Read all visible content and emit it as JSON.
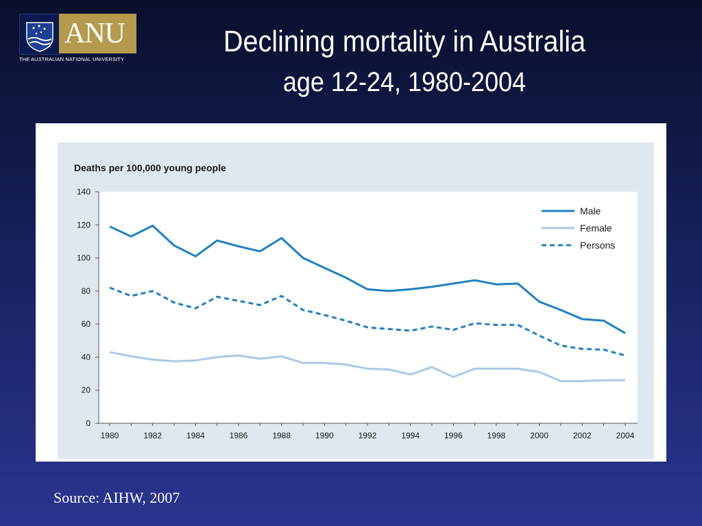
{
  "slide": {
    "title": "Declining mortality in Australia",
    "subtitle": "age 12-24, 1980-2004",
    "source": "Source: AIHW, 2007"
  },
  "logo": {
    "wordmark": "ANU",
    "university_name": "THE AUSTRALIAN NATIONAL UNIVERSITY"
  },
  "colors": {
    "male": "#1f7fc0",
    "female": "#a9c9e6",
    "persons": "#1f7fc0",
    "plot_bg": "#ffffff",
    "chart_bg": "#dfe7f0"
  },
  "chart_data": {
    "type": "line",
    "ylabel": "Deaths per 100,000 young people",
    "xlabel": "",
    "ylim": [
      0,
      140
    ],
    "yticks": [
      0,
      20,
      40,
      60,
      80,
      100,
      120,
      140
    ],
    "xticks": [
      1980,
      1982,
      1984,
      1986,
      1988,
      1990,
      1992,
      1994,
      1996,
      1998,
      2000,
      2002,
      2004
    ],
    "x": [
      1980,
      1981,
      1982,
      1983,
      1984,
      1985,
      1986,
      1987,
      1988,
      1989,
      1990,
      1991,
      1992,
      1993,
      1994,
      1995,
      1996,
      1997,
      1998,
      1999,
      2000,
      2001,
      2002,
      2003,
      2004
    ],
    "legend_position": "top-right",
    "grid": false,
    "series": [
      {
        "name": "Male",
        "style": "solid",
        "values": [
          119,
          113,
          119.5,
          107.5,
          101,
          110.5,
          107,
          104,
          112,
          100,
          94,
          88,
          81,
          80,
          81,
          82.5,
          84.5,
          86.5,
          84,
          84.5,
          73.5,
          68.5,
          63,
          62,
          54.5
        ]
      },
      {
        "name": "Female",
        "style": "solid",
        "values": [
          43,
          40.5,
          38.5,
          37.5,
          38,
          40,
          41,
          39,
          40.5,
          36.5,
          36.5,
          35.5,
          33,
          32.5,
          29.5,
          34,
          28,
          33,
          33,
          33,
          31,
          25.5,
          25.5,
          26,
          26
        ]
      },
      {
        "name": "Persons",
        "style": "dashed",
        "values": [
          82,
          77,
          80,
          73,
          69.5,
          76.5,
          74,
          71.5,
          77,
          68.5,
          65.5,
          62,
          58,
          57,
          56,
          58.5,
          56.5,
          60.5,
          59.5,
          59.5,
          53,
          47,
          45,
          44.5,
          41
        ]
      }
    ]
  }
}
